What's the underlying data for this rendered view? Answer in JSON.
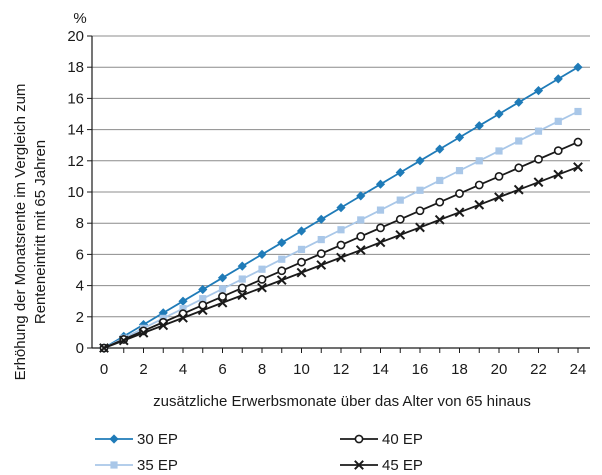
{
  "chart_data": {
    "type": "line",
    "unit_label": "%",
    "xlabel": "zusätzliche Erwerbsmonate über das Alter von 65 hinaus",
    "ylabel_line1": "Erhöhung der Monatsrente im Vergleich zum",
    "ylabel_line2": "Renteneintritt mit 65 Jahren",
    "xlim": [
      0,
      24
    ],
    "ylim": [
      0,
      20
    ],
    "x_ticks": [
      "0",
      "2",
      "4",
      "6",
      "8",
      "10",
      "12",
      "14",
      "16",
      "18",
      "20",
      "22",
      "24"
    ],
    "y_ticks": [
      "0",
      "2",
      "4",
      "6",
      "8",
      "10",
      "12",
      "14",
      "16",
      "18",
      "20"
    ],
    "grid": "horizontal",
    "legend_position": "bottom",
    "x": [
      0,
      1,
      2,
      3,
      4,
      5,
      6,
      7,
      8,
      9,
      10,
      11,
      12,
      13,
      14,
      15,
      16,
      17,
      18,
      19,
      20,
      21,
      22,
      23,
      24
    ],
    "series": [
      {
        "name": "30 EP",
        "color": "#1f7bb8",
        "marker": "diamond",
        "values": [
          0,
          0.75,
          1.5,
          2.25,
          3.0,
          3.75,
          4.5,
          5.25,
          6.0,
          6.75,
          7.5,
          8.25,
          9.0,
          9.75,
          10.5,
          11.25,
          12.0,
          12.75,
          13.5,
          14.25,
          15.0,
          15.75,
          16.5,
          17.25,
          18.0
        ]
      },
      {
        "name": "35 EP",
        "color": "#a9c7e8",
        "marker": "square",
        "values": [
          0,
          0.63,
          1.26,
          1.9,
          2.53,
          3.16,
          3.79,
          4.42,
          5.05,
          5.69,
          6.32,
          6.95,
          7.58,
          8.21,
          8.84,
          9.48,
          10.11,
          10.74,
          11.37,
          12.0,
          12.63,
          13.27,
          13.9,
          14.53,
          15.16
        ]
      },
      {
        "name": "40 EP",
        "color": "#1a1a1a",
        "marker": "circle",
        "values": [
          0,
          0.55,
          1.1,
          1.65,
          2.2,
          2.75,
          3.3,
          3.85,
          4.4,
          4.95,
          5.5,
          6.05,
          6.6,
          7.15,
          7.7,
          8.25,
          8.8,
          9.35,
          9.9,
          10.45,
          11.0,
          11.55,
          12.1,
          12.65,
          13.2
        ]
      },
      {
        "name": "45 EP",
        "color": "#1a1a1a",
        "marker": "cross",
        "values": [
          0,
          0.48,
          0.97,
          1.45,
          1.93,
          2.42,
          2.9,
          3.38,
          3.87,
          4.35,
          4.83,
          5.32,
          5.8,
          6.28,
          6.77,
          7.25,
          7.73,
          8.22,
          8.7,
          9.18,
          9.67,
          10.15,
          10.63,
          11.12,
          11.6
        ]
      }
    ]
  }
}
